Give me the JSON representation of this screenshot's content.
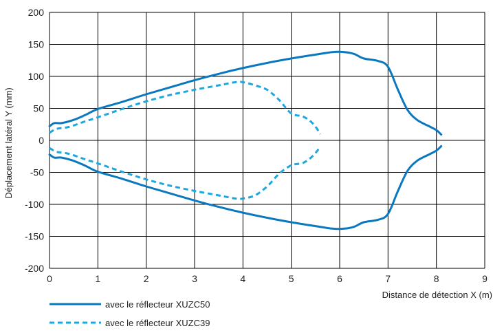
{
  "chart_data": {
    "type": "line",
    "title": "",
    "xlabel": "Distance de détection X (m)",
    "ylabel": "Déplacement latéral Y (mm)",
    "xlim": [
      0,
      9
    ],
    "ylim": [
      -200,
      200
    ],
    "x_ticks": [
      "0",
      "1",
      "2",
      "3",
      "4",
      "5",
      "6",
      "7",
      "8",
      "9"
    ],
    "y_ticks": [
      "200",
      "150",
      "100",
      "50",
      "0",
      "-50",
      "-100",
      "-150",
      "-200"
    ],
    "grid": true,
    "legend_position": "bottom-left",
    "series": [
      {
        "name": "avec le réflecteur XUZC50",
        "color": "#0a78bf",
        "style": "solid",
        "upper": [
          [
            0.0,
            22
          ],
          [
            0.1,
            27
          ],
          [
            0.25,
            27
          ],
          [
            0.5,
            32
          ],
          [
            0.75,
            40
          ],
          [
            1.0,
            49
          ],
          [
            1.5,
            60
          ],
          [
            2.0,
            72
          ],
          [
            2.5,
            83
          ],
          [
            3.0,
            94
          ],
          [
            3.5,
            104
          ],
          [
            4.0,
            113
          ],
          [
            4.5,
            121
          ],
          [
            5.0,
            128
          ],
          [
            5.5,
            134
          ],
          [
            5.85,
            138
          ],
          [
            6.1,
            138
          ],
          [
            6.3,
            135
          ],
          [
            6.5,
            128
          ],
          [
            6.8,
            124
          ],
          [
            7.0,
            115
          ],
          [
            7.2,
            80
          ],
          [
            7.4,
            48
          ],
          [
            7.6,
            32
          ],
          [
            7.85,
            22
          ],
          [
            8.0,
            16
          ],
          [
            8.1,
            9
          ]
        ],
        "lower": [
          [
            0.0,
            -22
          ],
          [
            0.1,
            -27
          ],
          [
            0.25,
            -27
          ],
          [
            0.5,
            -32
          ],
          [
            0.75,
            -40
          ],
          [
            1.0,
            -49
          ],
          [
            1.5,
            -60
          ],
          [
            2.0,
            -72
          ],
          [
            2.5,
            -83
          ],
          [
            3.0,
            -94
          ],
          [
            3.5,
            -104
          ],
          [
            4.0,
            -113
          ],
          [
            4.5,
            -121
          ],
          [
            5.0,
            -128
          ],
          [
            5.5,
            -134
          ],
          [
            5.85,
            -138
          ],
          [
            6.1,
            -138
          ],
          [
            6.3,
            -135
          ],
          [
            6.5,
            -128
          ],
          [
            6.8,
            -124
          ],
          [
            7.0,
            -115
          ],
          [
            7.2,
            -80
          ],
          [
            7.4,
            -48
          ],
          [
            7.6,
            -32
          ],
          [
            7.85,
            -22
          ],
          [
            8.0,
            -16
          ],
          [
            8.1,
            -9
          ]
        ]
      },
      {
        "name": "avec le réflecteur XUZC39",
        "color": "#1ba7e0",
        "style": "dashed",
        "upper": [
          [
            0.0,
            12
          ],
          [
            0.15,
            18
          ],
          [
            0.4,
            21
          ],
          [
            0.75,
            30
          ],
          [
            1.0,
            36
          ],
          [
            1.5,
            49
          ],
          [
            2.0,
            61
          ],
          [
            2.5,
            71
          ],
          [
            3.0,
            79
          ],
          [
            3.5,
            86
          ],
          [
            3.85,
            91
          ],
          [
            4.0,
            91
          ],
          [
            4.25,
            86
          ],
          [
            4.5,
            79
          ],
          [
            4.75,
            63
          ],
          [
            5.0,
            42
          ],
          [
            5.25,
            37
          ],
          [
            5.45,
            26
          ],
          [
            5.6,
            10
          ]
        ],
        "lower": [
          [
            0.0,
            -12
          ],
          [
            0.15,
            -18
          ],
          [
            0.4,
            -21
          ],
          [
            0.75,
            -30
          ],
          [
            1.0,
            -36
          ],
          [
            1.5,
            -49
          ],
          [
            2.0,
            -61
          ],
          [
            2.5,
            -71
          ],
          [
            3.0,
            -79
          ],
          [
            3.5,
            -86
          ],
          [
            3.85,
            -91
          ],
          [
            4.0,
            -91
          ],
          [
            4.25,
            -86
          ],
          [
            4.5,
            -72
          ],
          [
            4.75,
            -52
          ],
          [
            5.0,
            -39
          ],
          [
            5.25,
            -35
          ],
          [
            5.45,
            -24
          ],
          [
            5.6,
            -10
          ]
        ]
      }
    ]
  }
}
